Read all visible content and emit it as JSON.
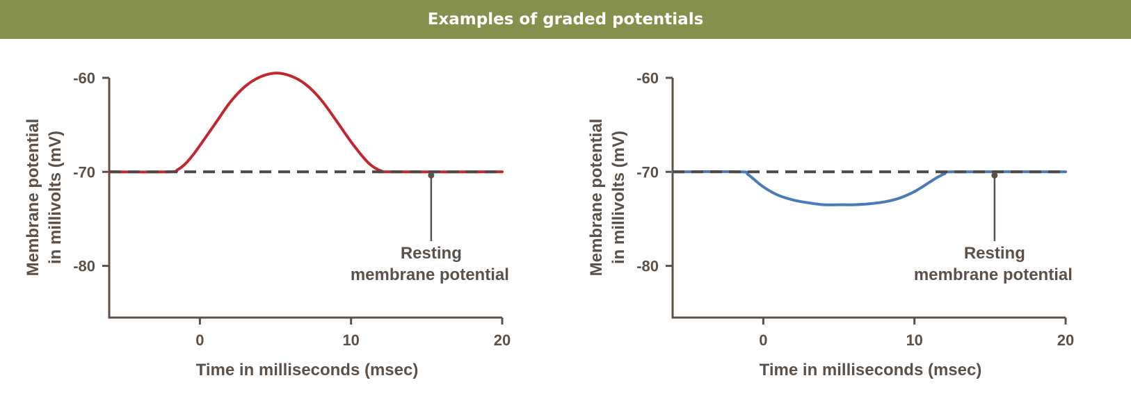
{
  "page": {
    "title": "Examples of graded potentials"
  },
  "colors": {
    "banner": "#85904d",
    "axis": "#5b5149",
    "series_depolarization": "#c0282d",
    "series_hyperpolarization": "#4a7ab8",
    "resting_line": "#4d4a46"
  },
  "chart_data": [
    {
      "type": "line",
      "title": "",
      "xlabel": "Time in milliseconds (msec)",
      "ylabel": [
        "Membrane potential",
        "in millivolts (mV)"
      ],
      "xlim": [
        -6,
        20
      ],
      "ylim": [
        -85.5,
        -60
      ],
      "xticks": [
        "0",
        "10",
        "20"
      ],
      "yticks": [
        "-60",
        "-70",
        "-80"
      ],
      "grid": false,
      "resting_potential": -70,
      "annotation": {
        "lines": [
          "Resting",
          "membrane potential"
        ],
        "x": 15.3,
        "y": -70
      },
      "series": [
        {
          "x": [
            -6,
            -2,
            -1.5,
            -1,
            -0.5,
            0,
            1,
            2,
            3,
            4,
            5,
            6,
            7,
            8,
            9,
            10,
            11,
            11.5,
            12,
            12.5,
            20
          ],
          "y": [
            -70,
            -70,
            -69.8,
            -69.2,
            -68.3,
            -67.2,
            -64.9,
            -62.6,
            -60.9,
            -59.9,
            -59.5,
            -59.8,
            -60.7,
            -62.3,
            -64.5,
            -66.8,
            -68.8,
            -69.5,
            -69.9,
            -70,
            -70
          ]
        }
      ]
    },
    {
      "type": "line",
      "title": "",
      "xlabel": "Time in milliseconds (msec)",
      "ylabel": [
        "Membrane potential",
        "in millivolts (mV)"
      ],
      "xlim": [
        -6,
        20
      ],
      "ylim": [
        -85.5,
        -60
      ],
      "xticks": [
        "0",
        "10",
        "20"
      ],
      "yticks": [
        "-60",
        "-70",
        "-80"
      ],
      "grid": false,
      "resting_potential": -70,
      "annotation": {
        "lines": [
          "Resting",
          "membrane potential"
        ],
        "x": 15.3,
        "y": -70
      },
      "series": [
        {
          "x": [
            -6,
            -1.5,
            -1,
            0,
            1,
            2,
            3,
            4,
            5,
            6,
            7,
            8,
            9,
            10,
            11,
            11.5,
            12,
            12.5,
            20
          ],
          "y": [
            -70,
            -70,
            -70.3,
            -71.6,
            -72.5,
            -73.0,
            -73.3,
            -73.5,
            -73.5,
            -73.5,
            -73.4,
            -73.2,
            -72.8,
            -72.1,
            -71.1,
            -70.6,
            -70.2,
            -70,
            -70
          ]
        }
      ]
    }
  ]
}
